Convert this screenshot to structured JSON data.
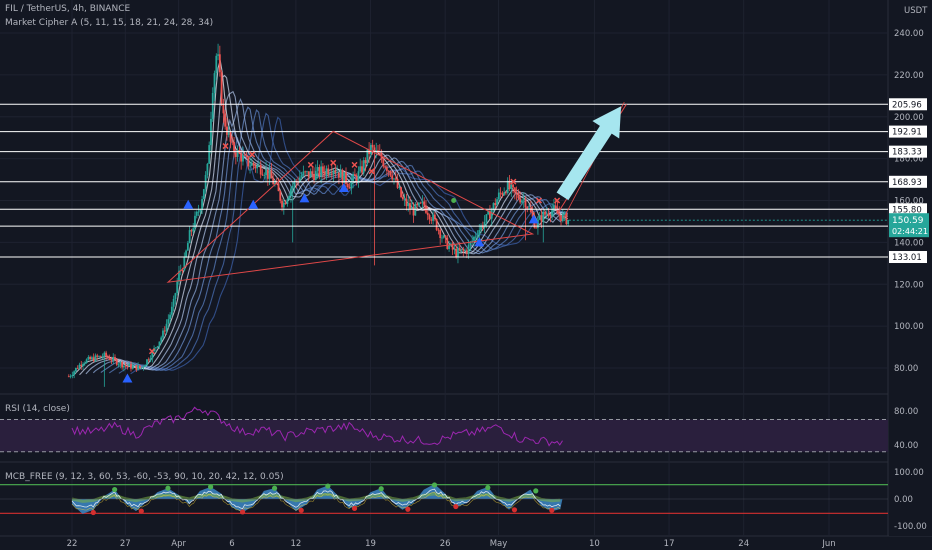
{
  "header": {
    "symbol": "FIL / TetherUS, 4h, BINANCE",
    "indicator": "Market Cipher A (5, 11, 15, 18, 21, 24, 28, 34)",
    "currency": "USDT"
  },
  "rsi_panel": {
    "label": "RSI (14, close)"
  },
  "mcb_panel": {
    "label": "MCB_FREE (9, 12, 3, 60, 53, -60, -53, 90, 10, 20, 42, 12, 0.05)"
  },
  "colors": {
    "background": "#131722",
    "up_candle": "#26a69a",
    "down_candle": "#ef5350",
    "triangle": "#e04848",
    "arrow": "#a6e6ef",
    "rsi_line": "#9c27b0",
    "rsi_band": "#2a1f3d",
    "mcb_wave": "#3d88c7",
    "mcb_green": "#4caf50",
    "mcb_red": "#d32f2f",
    "current_price": "#26a69a"
  },
  "chart_data": [
    {
      "type": "candlestick",
      "title": "FIL / TetherUS, 4h, BINANCE",
      "y_axis": {
        "ticks": [
          "240.00",
          "220.00",
          "200.00",
          "180.00",
          "160.00",
          "140.00",
          "120.00",
          "100.00",
          "80.00"
        ],
        "tick_values": [
          240,
          220,
          200,
          180,
          160,
          140,
          120,
          100,
          80
        ],
        "range": [
          72,
          244
        ]
      },
      "x_axis": {
        "ticks": [
          "22",
          "27",
          "Apr",
          "6",
          "12",
          "19",
          "26",
          "May",
          "10",
          "17",
          "24",
          "Jun"
        ],
        "tick_days": [
          0,
          5,
          10,
          15,
          21,
          28,
          35,
          40,
          49,
          56,
          63,
          71
        ]
      },
      "horizontal_levels": [
        {
          "label": "205.96",
          "value": 205.96
        },
        {
          "label": "192.91",
          "value": 192.91
        },
        {
          "label": "183.33",
          "value": 183.33
        },
        {
          "label": "168.93",
          "value": 168.93
        },
        {
          "label": "155.80",
          "value": 155.8
        },
        {
          "label": "147.77",
          "value": 147.77
        },
        {
          "label": "133.01",
          "value": 133.01
        }
      ],
      "current_price": {
        "label": "150.59",
        "value": 150.59,
        "countdown": "02:44:21"
      },
      "triangle": [
        [
          9,
          121
        ],
        [
          24.5,
          193
        ],
        [
          43.2,
          144
        ]
      ],
      "projection": [
        [
          45.5,
          153.5
        ],
        [
          52,
          206
        ]
      ],
      "close_path": [
        [
          -0.3,
          76
        ],
        [
          1,
          83
        ],
        [
          3,
          86
        ],
        [
          5,
          81
        ],
        [
          6.5,
          80
        ],
        [
          7.5,
          87
        ],
        [
          8.5,
          96
        ],
        [
          9.5,
          110
        ],
        [
          10,
          125
        ],
        [
          10.5,
          130
        ],
        [
          11,
          143
        ],
        [
          12,
          157
        ],
        [
          12.7,
          175
        ],
        [
          13.2,
          215
        ],
        [
          13.6,
          232
        ],
        [
          14.2,
          200
        ],
        [
          15,
          185
        ],
        [
          16.5,
          178
        ],
        [
          18,
          175
        ],
        [
          19,
          168
        ],
        [
          19.8,
          158
        ],
        [
          20.5,
          166
        ],
        [
          21.5,
          172
        ],
        [
          23,
          173
        ],
        [
          24.5,
          176
        ],
        [
          26,
          168
        ],
        [
          27,
          173
        ],
        [
          28,
          185
        ],
        [
          29,
          180
        ],
        [
          30,
          173
        ],
        [
          31,
          160
        ],
        [
          32,
          155
        ],
        [
          33,
          158
        ],
        [
          34,
          150
        ],
        [
          35,
          140
        ],
        [
          36,
          135
        ],
        [
          37,
          136
        ],
        [
          38,
          145
        ],
        [
          39,
          152
        ],
        [
          40,
          162
        ],
        [
          40.8,
          167
        ],
        [
          41.5,
          163
        ],
        [
          42.5,
          160
        ],
        [
          43.5,
          148
        ],
        [
          44,
          152
        ],
        [
          45,
          156
        ],
        [
          46,
          152
        ],
        [
          46.6,
          150.5
        ]
      ],
      "candle_start_day": -0.3,
      "candle_end_day": 46.6,
      "dips": [
        [
          3,
          71
        ],
        [
          20.7,
          140
        ],
        [
          28.4,
          129
        ],
        [
          42.6,
          141
        ],
        [
          44.2,
          140
        ]
      ],
      "bull_signals": [
        [
          5.2,
          75
        ],
        [
          10.9,
          158
        ],
        [
          17,
          158
        ],
        [
          21.8,
          161
        ],
        [
          25.5,
          166
        ],
        [
          38.2,
          140
        ],
        [
          43.3,
          151
        ]
      ],
      "bear_signals": [
        [
          7.5,
          88
        ],
        [
          14.4,
          186
        ],
        [
          16.9,
          182
        ],
        [
          22.4,
          177
        ],
        [
          24.5,
          178
        ],
        [
          26.5,
          177
        ],
        [
          28.1,
          174
        ],
        [
          41.4,
          169
        ],
        [
          43.8,
          160
        ],
        [
          45.5,
          160
        ]
      ],
      "green_dots": [
        [
          35.8,
          160
        ]
      ]
    },
    {
      "type": "line",
      "title": "RSI (14, close)",
      "y_axis": {
        "ticks": [
          "80.00",
          "40.00"
        ],
        "tick_values": [
          80,
          40
        ],
        "range": [
          25,
          90
        ]
      },
      "band": [
        32,
        70
      ],
      "x": [
        0,
        2,
        4,
        6,
        8,
        10,
        11,
        12,
        13,
        14,
        15,
        16,
        18,
        20,
        22,
        24,
        26,
        28,
        30,
        32,
        34,
        36,
        38,
        40,
        42,
        44,
        46
      ],
      "values": [
        58,
        55,
        62,
        52,
        66,
        72,
        78,
        83,
        79,
        70,
        62,
        55,
        58,
        50,
        56,
        59,
        62,
        52,
        48,
        46,
        44,
        52,
        55,
        62,
        47,
        45,
        43
      ]
    },
    {
      "type": "area",
      "title": "MCB_FREE (9, 12, 3, 60, 53, -60, -53, 90, 10, 20, 42, 12, 0.05)",
      "y_axis": {
        "ticks": [
          "100.00",
          "0.00",
          "-100.00"
        ],
        "tick_values": [
          100,
          0,
          -100
        ],
        "range": [
          -125,
          125
        ]
      },
      "levels": [
        53,
        -53
      ],
      "x": [
        0,
        1,
        2,
        3,
        4,
        5,
        6,
        7,
        8,
        9,
        10,
        11,
        12,
        13,
        14,
        15,
        16,
        17,
        18,
        19,
        20,
        21,
        22,
        23,
        24,
        25,
        26,
        27,
        28,
        29,
        30,
        31,
        32,
        33,
        34,
        35,
        36,
        37,
        38,
        39,
        40,
        41,
        42,
        43,
        44,
        45,
        46
      ],
      "values": [
        -20,
        -55,
        -40,
        10,
        35,
        -15,
        -45,
        -10,
        25,
        40,
        15,
        -20,
        30,
        45,
        20,
        -30,
        -50,
        -25,
        30,
        40,
        -5,
        -45,
        -20,
        35,
        50,
        10,
        -35,
        -20,
        25,
        40,
        -10,
        -40,
        -15,
        35,
        55,
        20,
        -30,
        -15,
        30,
        45,
        -5,
        -40,
        10,
        35,
        -25,
        -45,
        -35
      ],
      "signal_red": [
        [
          2,
          -50
        ],
        [
          6.5,
          -45
        ],
        [
          16,
          -48
        ],
        [
          21.5,
          -42
        ],
        [
          26.5,
          -35
        ],
        [
          31.5,
          -38
        ],
        [
          36,
          -28
        ],
        [
          41.5,
          -40
        ],
        [
          45,
          -42
        ]
      ],
      "signal_green": [
        [
          4,
          35
        ],
        [
          9,
          40
        ],
        [
          13,
          45
        ],
        [
          19,
          40
        ],
        [
          24,
          48
        ],
        [
          29,
          38
        ],
        [
          34,
          52
        ],
        [
          39,
          42
        ],
        [
          43.5,
          30
        ]
      ]
    }
  ]
}
